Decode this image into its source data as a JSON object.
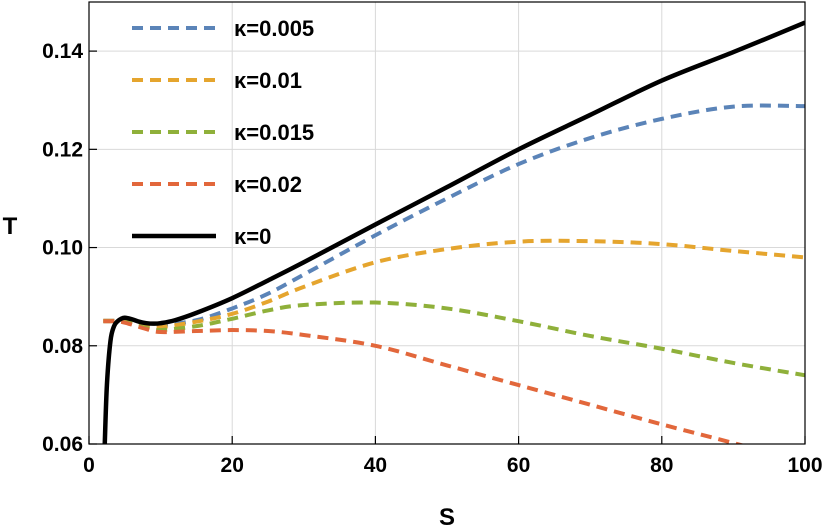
{
  "chart_data": {
    "type": "line",
    "title": "",
    "xlabel": "S",
    "ylabel": "T",
    "xlim": [
      0,
      100
    ],
    "ylim": [
      0.06,
      0.15
    ],
    "grid": true,
    "legend_position": "top-left",
    "x_ticks": [
      0,
      20,
      40,
      60,
      80,
      100
    ],
    "x_tick_labels": [
      "0",
      "20",
      "40",
      "60",
      "80",
      "100"
    ],
    "y_ticks": [
      0.06,
      0.08,
      0.1,
      0.12,
      0.14
    ],
    "y_tick_labels": [
      "0.06",
      "0.08",
      "0.10",
      "0.12",
      "0.14"
    ],
    "series": [
      {
        "name": "κ=0.005",
        "color": "#5B84B8",
        "style": "dashed",
        "x": [
          2,
          3,
          4,
          5,
          6,
          8,
          10,
          15,
          20,
          25,
          30,
          40,
          50,
          60,
          70,
          80,
          90,
          100
        ],
        "y": [
          0.0851,
          0.0851,
          0.0851,
          0.0851,
          0.0849,
          0.0844,
          0.0842,
          0.0852,
          0.0876,
          0.0906,
          0.0945,
          0.1025,
          0.11,
          0.117,
          0.1223,
          0.1262,
          0.1287,
          0.1288
        ]
      },
      {
        "name": "κ=0.01",
        "color": "#E5A52E",
        "style": "dashed",
        "x": [
          2,
          3,
          4,
          5,
          6,
          8,
          10,
          15,
          20,
          25,
          30,
          40,
          50,
          60,
          70,
          80,
          90,
          100
        ],
        "y": [
          0.0851,
          0.0851,
          0.0851,
          0.085,
          0.0848,
          0.0841,
          0.0838,
          0.0849,
          0.0865,
          0.089,
          0.092,
          0.097,
          0.0997,
          0.1012,
          0.1013,
          0.1007,
          0.0993,
          0.098
        ]
      },
      {
        "name": "κ=0.015",
        "color": "#8FB03A",
        "style": "dashed",
        "x": [
          2,
          3,
          4,
          5,
          6,
          8,
          10,
          15,
          20,
          25,
          30,
          40,
          50,
          60,
          70,
          80,
          90,
          100
        ],
        "y": [
          0.085,
          0.085,
          0.085,
          0.0848,
          0.0845,
          0.0836,
          0.0832,
          0.084,
          0.0855,
          0.0872,
          0.0883,
          0.0888,
          0.0876,
          0.085,
          0.082,
          0.0794,
          0.0765,
          0.074
        ]
      },
      {
        "name": "κ=0.02",
        "color": "#E2673B",
        "style": "dashed",
        "x": [
          2,
          3,
          4,
          5,
          6,
          8,
          10,
          15,
          20,
          25,
          30,
          40,
          50,
          60,
          70,
          80,
          90,
          93
        ],
        "y": [
          0.085,
          0.085,
          0.085,
          0.0847,
          0.0843,
          0.0834,
          0.0828,
          0.083,
          0.0832,
          0.083,
          0.0822,
          0.08,
          0.076,
          0.072,
          0.068,
          0.064,
          0.0602,
          0.059
        ]
      },
      {
        "name": "κ=0",
        "color": "#000000",
        "style": "solid",
        "x": [
          2.2,
          2.5,
          3,
          3.5,
          4,
          4.5,
          5,
          6,
          7,
          8,
          9,
          10,
          12,
          15,
          20,
          25,
          30,
          40,
          50,
          60,
          70,
          80,
          90,
          100
        ],
        "y": [
          0.06,
          0.072,
          0.081,
          0.084,
          0.085,
          0.0855,
          0.0857,
          0.0854,
          0.0849,
          0.0846,
          0.0845,
          0.0846,
          0.0852,
          0.0867,
          0.0897,
          0.0933,
          0.097,
          0.1047,
          0.1123,
          0.12,
          0.127,
          0.134,
          0.1398,
          0.1458
        ]
      }
    ]
  }
}
